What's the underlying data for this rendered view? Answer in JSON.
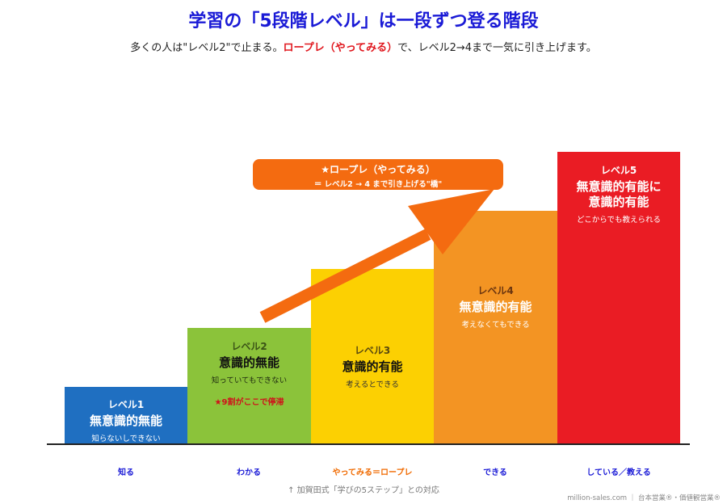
{
  "title": "学習の「5段階レベル」は一段ずつ登る階段",
  "subtitle": {
    "before": "多くの人は\"レベル2\"で止まる。",
    "highlight": "ロープレ（やってみる）",
    "after": "で、レベル2→4まで一気に引き上げます。"
  },
  "steps": [
    {
      "level": "レベル1",
      "name": "無意識的無能",
      "desc": "知らないしできない",
      "color": "#1f6fc1"
    },
    {
      "level": "レベル2",
      "name": "意識的無能",
      "desc": "知っていてもできない",
      "note": "★9割がここで停滞",
      "color": "#8bc33a"
    },
    {
      "level": "レベル3",
      "name": "意識的有能",
      "desc": "考えるとできる",
      "color": "#fcd002"
    },
    {
      "level": "レベル4",
      "name": "無意識的有能",
      "desc": "考えなくてもできる",
      "color": "#f39423"
    },
    {
      "level": "レベル5",
      "name_line1": "無意識的有能に",
      "name_line2": "意識的有能",
      "desc": "どこからでも教えられる",
      "color": "#ea1c24"
    }
  ],
  "banner": {
    "line1": "★ロープレ（やってみる）",
    "line2": "＝ レベル2 → 4 まで引き上げる\"橋\"",
    "color": "#f46b10"
  },
  "x_labels": [
    "知る",
    "わかる",
    "やってみる＝ロープレ",
    "できる",
    "している／教える"
  ],
  "footnote": "↑ 加賀田式「学びの5ステップ」との対応",
  "credit": "million-sales.com ｜ 台本営業®・価値観営業®"
}
